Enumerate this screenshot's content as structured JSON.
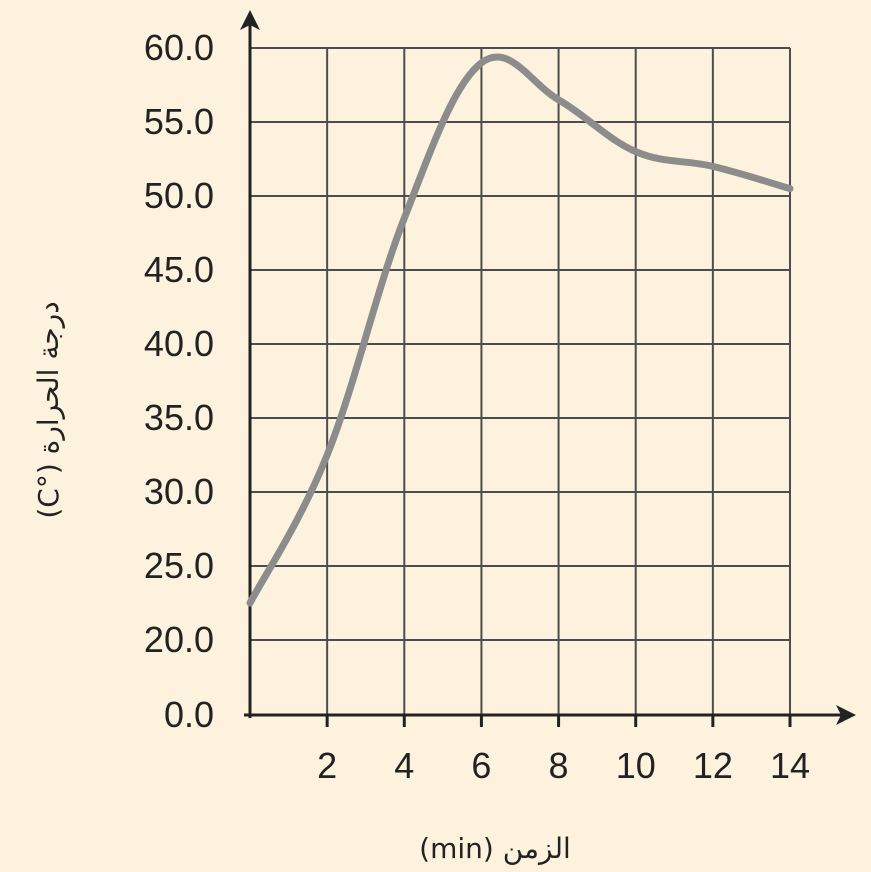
{
  "chart_data": {
    "type": "line",
    "title": "",
    "xlabel": "الزمن (min)",
    "ylabel": "درجة الحرارة (°C)",
    "xlim": [
      0,
      14
    ],
    "ylim": [
      15,
      60
    ],
    "grid": true,
    "x_ticks": [
      "2",
      "4",
      "6",
      "8",
      "10",
      "12",
      "14"
    ],
    "y_ticks": [
      "0.0",
      "20.0",
      "25.0",
      "30.0",
      "35.0",
      "40.0",
      "45.0",
      "50.0",
      "55.0",
      "60.0"
    ],
    "axis_break": "y axis jumps from 0.0 to 20.0",
    "series": [
      {
        "x": [
          0,
          2,
          4,
          6,
          8,
          10,
          12,
          14
        ],
        "y": [
          22.5,
          32.5,
          48.5,
          59.0,
          56.5,
          53.0,
          52.0,
          50.5
        ]
      }
    ],
    "colors": {
      "background": "#FDF2DE",
      "grid": "#4D4D4D",
      "axis": "#222222",
      "line": "#8C8C8C"
    }
  }
}
